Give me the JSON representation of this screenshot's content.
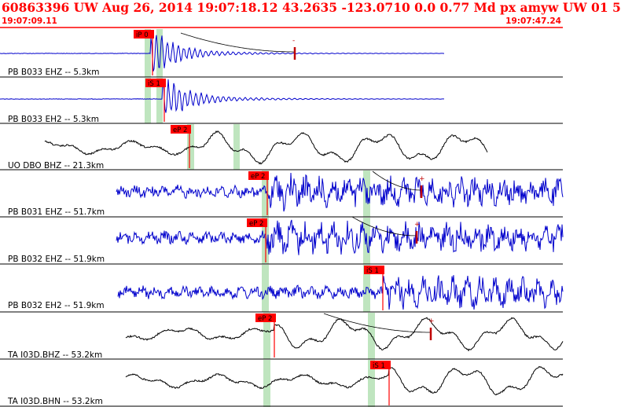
{
  "header": {
    "title": "60863396 UW Aug 26, 2014 19:07:18.12    43.2635 -123.0710  0.0 0.77 Md px amyw UW 01    5",
    "start_time": "19:07:09.11",
    "end_time": "19:07:47.24"
  },
  "colors": {
    "title_red": "#ff0000",
    "trace_blue": "#0000cc",
    "trace_black": "#000000",
    "pick_red": "#ff0000",
    "shade_green": "#bfe5bf",
    "coda_red": "#c00000"
  },
  "traces": [
    {
      "label": "PB B033 EHZ -- 5.3km",
      "pick": "iP 0",
      "color": "blue",
      "style": "flat"
    },
    {
      "label": "PB B033 EH2 -- 5.3km",
      "pick": "iS 1",
      "color": "blue",
      "style": "flat"
    },
    {
      "label": "UO DBO BHZ -- 21.3km",
      "pick": "eP 2",
      "color": "black",
      "style": "slow"
    },
    {
      "label": "PB B031 EHZ -- 51.7km",
      "pick": "eP 2",
      "color": "blue",
      "style": "noisy"
    },
    {
      "label": "PB B032 EHZ -- 51.9km",
      "pick": "eP 2",
      "color": "blue",
      "style": "noisy"
    },
    {
      "label": "PB B032 EH2 -- 51.9km",
      "pick": "iS 1",
      "color": "blue",
      "style": "noisy"
    },
    {
      "label": "TA I03D.BHZ -- 53.2km",
      "pick": "eP 2",
      "color": "black",
      "style": "slow"
    },
    {
      "label": "TA I03D.BHN -- 53.2km",
      "pick": "iS 1",
      "color": "black",
      "style": "slow"
    }
  ],
  "coda_markers": [
    "-",
    "+",
    "+",
    "+"
  ]
}
